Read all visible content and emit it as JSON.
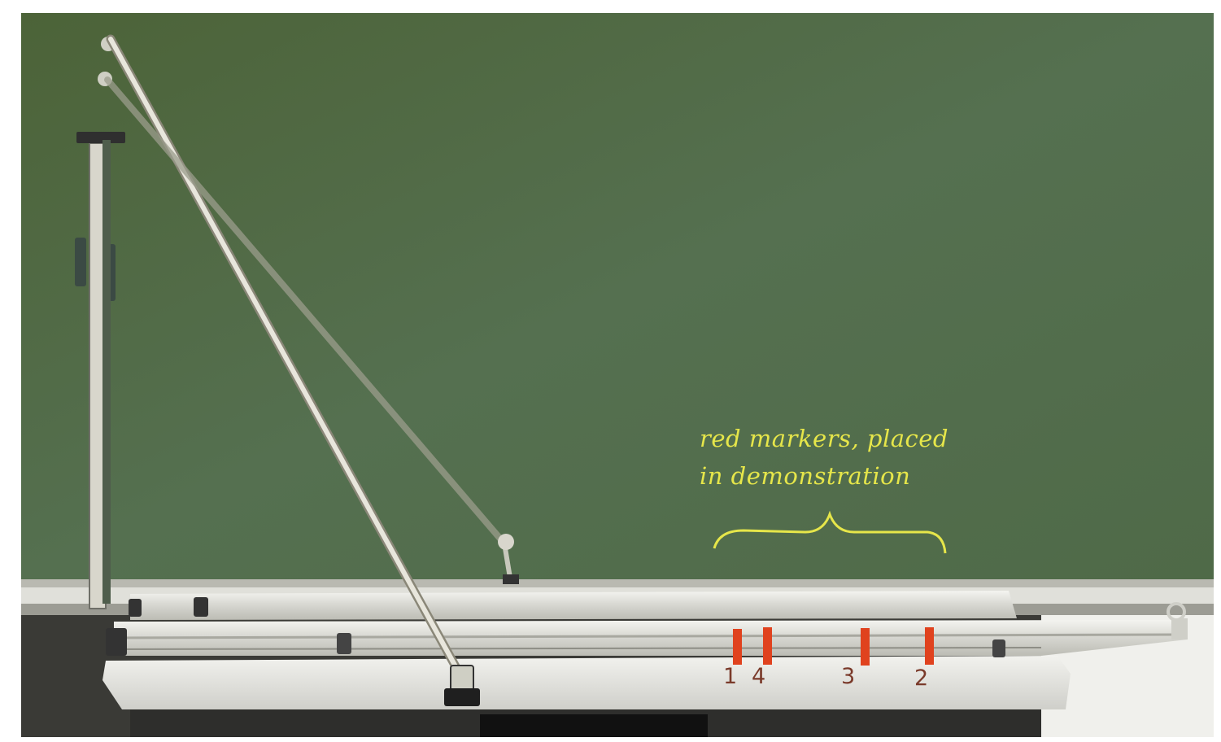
{
  "annotation": {
    "line1": "red markers, placed",
    "line2": "in demonstration",
    "color": "#e6e64a"
  },
  "markers": {
    "labels": [
      "1",
      "4",
      "3",
      "2"
    ],
    "label_color": "#7a3a2a",
    "marker_color": "#e0421e"
  },
  "colors": {
    "chalkboard": "#4e6440",
    "frame": "#c8c8c0",
    "track": "#e4e4e0",
    "rod": "#d8d4c4",
    "shadow": "#2a2a2a"
  }
}
